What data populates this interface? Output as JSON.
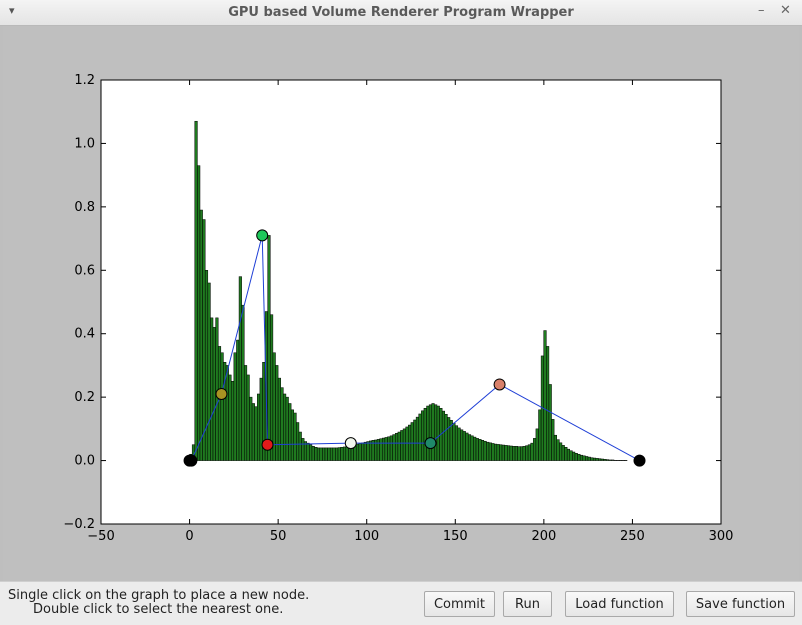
{
  "window": {
    "title": "GPU based Volume Renderer Program Wrapper",
    "menu_glyph": "▾",
    "minimize_glyph": "–",
    "close_glyph": "✕"
  },
  "status": {
    "line1": "Single click on the graph to place a new node.",
    "line2": "Double click to select the nearest one."
  },
  "buttons": {
    "commit": "Commit",
    "run": "Run",
    "load": "Load function",
    "save": "Save function"
  },
  "chart_data": {
    "type": "bar",
    "xlim": [
      -50,
      300
    ],
    "ylim": [
      -0.2,
      1.2
    ],
    "xticks": [
      -50,
      0,
      50,
      100,
      150,
      200,
      250,
      300
    ],
    "xtick_labels": [
      "−50",
      "0",
      "50",
      "100",
      "150",
      "200",
      "250",
      "300"
    ],
    "yticks": [
      -0.2,
      0.0,
      0.2,
      0.4,
      0.6,
      0.8,
      1.0,
      1.2
    ],
    "ytick_labels": [
      "−0.2",
      "0.0",
      "0.2",
      "0.4",
      "0.6",
      "0.8",
      "1.0",
      "1.2"
    ],
    "histogram": {
      "bar_color": "#1f7a1f",
      "edge_color": "#000000",
      "values": [
        0.02,
        0.05,
        1.07,
        0.93,
        0.79,
        0.76,
        0.6,
        0.56,
        0.45,
        0.42,
        0.45,
        0.36,
        0.34,
        0.31,
        0.3,
        0.27,
        0.25,
        0.34,
        0.38,
        0.58,
        0.49,
        0.3,
        0.27,
        0.2,
        0.18,
        0.17,
        0.21,
        0.26,
        0.31,
        0.47,
        0.71,
        0.46,
        0.34,
        0.3,
        0.26,
        0.23,
        0.21,
        0.2,
        0.18,
        0.16,
        0.15,
        0.12,
        0.09,
        0.07,
        0.06,
        0.055,
        0.05,
        0.045,
        0.042,
        0.04,
        0.04,
        0.04,
        0.04,
        0.04,
        0.04,
        0.04,
        0.04,
        0.041,
        0.042,
        0.043,
        0.045,
        0.047,
        0.048,
        0.05,
        0.052,
        0.054,
        0.056,
        0.058,
        0.06,
        0.062,
        0.064,
        0.065,
        0.067,
        0.069,
        0.071,
        0.073,
        0.075,
        0.078,
        0.082,
        0.086,
        0.09,
        0.095,
        0.1,
        0.106,
        0.112,
        0.12,
        0.128,
        0.137,
        0.147,
        0.157,
        0.165,
        0.172,
        0.176,
        0.18,
        0.176,
        0.172,
        0.165,
        0.156,
        0.146,
        0.136,
        0.127,
        0.118,
        0.11,
        0.103,
        0.097,
        0.092,
        0.087,
        0.082,
        0.078,
        0.074,
        0.07,
        0.067,
        0.064,
        0.061,
        0.058,
        0.056,
        0.054,
        0.052,
        0.051,
        0.05,
        0.049,
        0.048,
        0.047,
        0.046,
        0.045,
        0.045,
        0.044,
        0.044,
        0.045,
        0.047,
        0.05,
        0.055,
        0.07,
        0.1,
        0.16,
        0.33,
        0.41,
        0.36,
        0.24,
        0.13,
        0.08,
        0.066,
        0.056,
        0.048,
        0.042,
        0.036,
        0.031,
        0.027,
        0.023,
        0.02,
        0.017,
        0.015,
        0.013,
        0.011,
        0.009,
        0.008,
        0.007,
        0.006,
        0.005,
        0.004,
        0.003,
        0.002,
        0.002,
        0.001,
        0.001,
        0.001,
        0.001,
        0.001
      ],
      "x_start": 0,
      "bin_width": 1.47
    },
    "transfer_function": {
      "line_color": "#1f3fd6",
      "nodes": [
        {
          "x": 0,
          "y": 0.0,
          "color": "#000000"
        },
        {
          "x": 1,
          "y": 0.0,
          "color": "#000000"
        },
        {
          "x": 18,
          "y": 0.21,
          "color": "#a89422"
        },
        {
          "x": 41,
          "y": 0.71,
          "color": "#1ec85a"
        },
        {
          "x": 44,
          "y": 0.05,
          "color": "#e01a1a"
        },
        {
          "x": 91,
          "y": 0.055,
          "color": "#f2f7ee"
        },
        {
          "x": 136,
          "y": 0.055,
          "color": "#1f8a6a"
        },
        {
          "x": 175,
          "y": 0.24,
          "color": "#d8806a"
        },
        {
          "x": 254,
          "y": 0.0,
          "color": "#000000"
        }
      ]
    }
  }
}
